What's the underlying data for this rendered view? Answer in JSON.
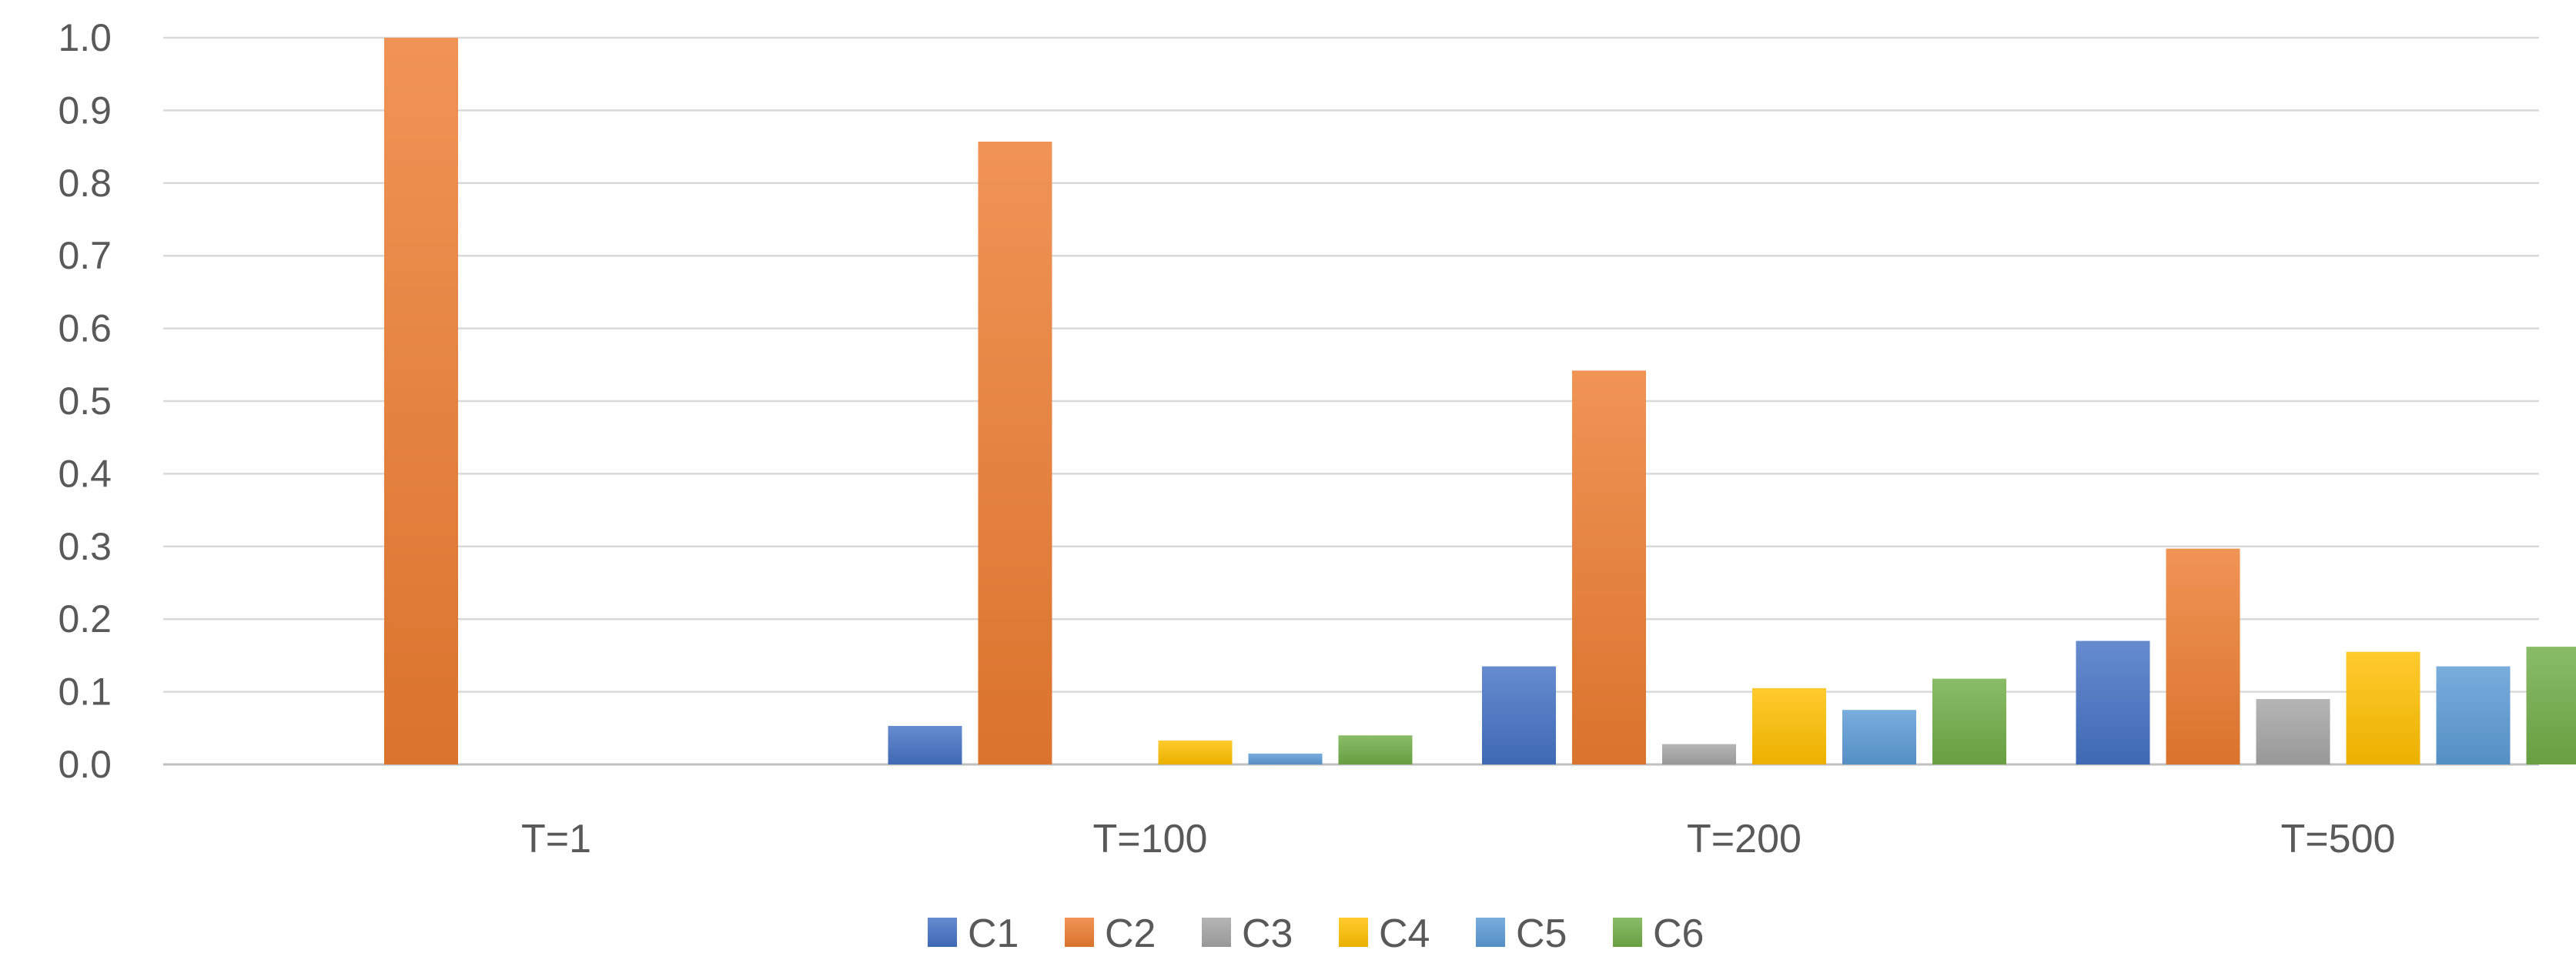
{
  "chart_data": {
    "type": "bar",
    "title": "",
    "xlabel": "",
    "ylabel": "",
    "categories": [
      "T=1",
      "T=100",
      "T=200",
      "T=500"
    ],
    "series": [
      {
        "name": "C1",
        "color": "#4472C4",
        "values": [
          0.0,
          0.053,
          0.135,
          0.17
        ]
      },
      {
        "name": "C2",
        "color": "#ED7D31",
        "values": [
          1.0,
          0.857,
          0.542,
          0.297
        ]
      },
      {
        "name": "C3",
        "color": "#A5A5A5",
        "values": [
          0.0,
          0.0,
          0.028,
          0.09
        ]
      },
      {
        "name": "C4",
        "color": "#FFC000",
        "values": [
          0.0,
          0.033,
          0.105,
          0.155
        ]
      },
      {
        "name": "C5",
        "color": "#5B9BD5",
        "values": [
          0.0,
          0.015,
          0.075,
          0.135
        ]
      },
      {
        "name": "C6",
        "color": "#70AD47",
        "values": [
          0.0,
          0.04,
          0.118,
          0.162
        ]
      }
    ],
    "ylim": [
      0,
      1.0
    ],
    "yticks": [
      "0.0",
      "0.1",
      "0.2",
      "0.3",
      "0.4",
      "0.5",
      "0.6",
      "0.7",
      "0.8",
      "0.9",
      "1.0"
    ],
    "grid": true,
    "legend": "bottom-center"
  }
}
